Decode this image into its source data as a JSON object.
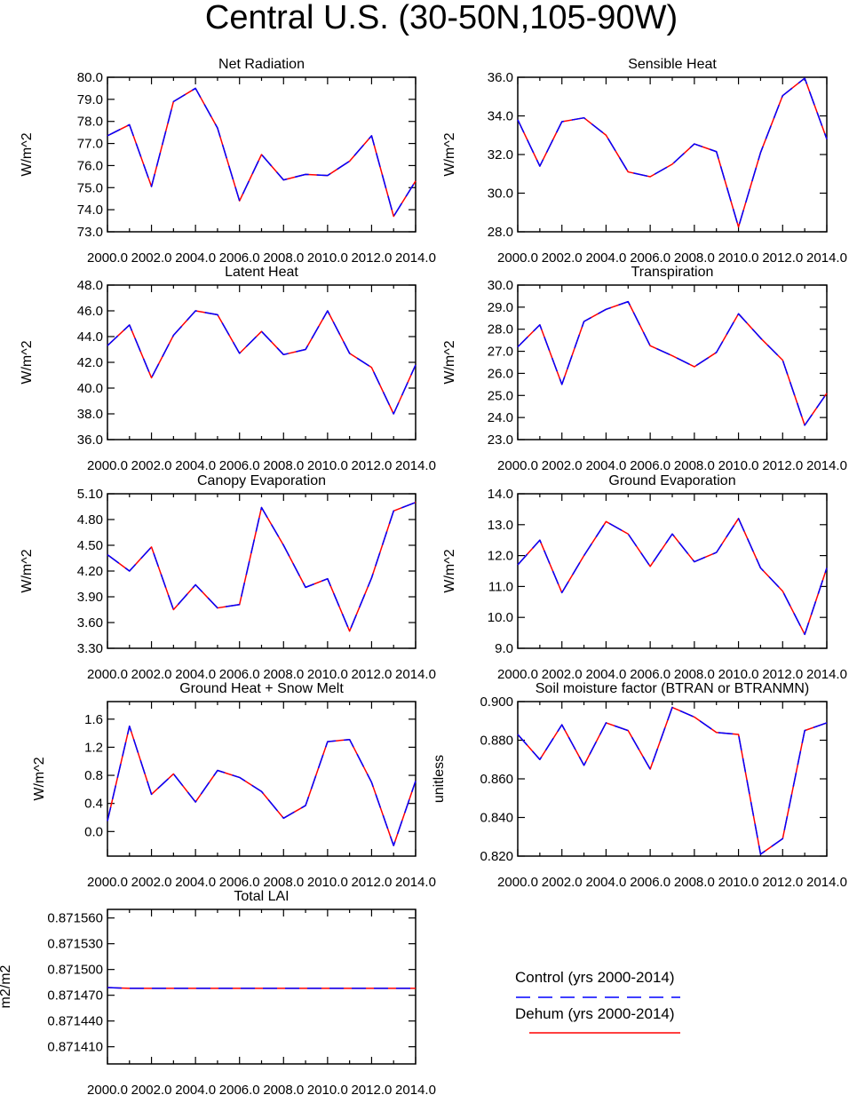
{
  "title": "Central U.S. (30-50N,105-90W)",
  "colors": {
    "control": "#0000ff",
    "dehum": "#ff0000",
    "axes": "#000000"
  },
  "legend": {
    "entries": [
      {
        "name": "Control (yrs 2000-2014)",
        "color": "#0000ff",
        "style": "dashed"
      },
      {
        "name": "Dehum (yrs 2000-2014)",
        "color": "#ff0000",
        "style": "solid"
      }
    ]
  },
  "chart_data": [
    {
      "type": "line",
      "title": "Net Radiation",
      "ylabel": "W/m^2",
      "x": [
        2000,
        2001,
        2002,
        2003,
        2004,
        2005,
        2006,
        2007,
        2008,
        2009,
        2010,
        2011,
        2012,
        2013,
        2014
      ],
      "xticks": [
        2000,
        2002,
        2004,
        2006,
        2008,
        2010,
        2012,
        2014
      ],
      "xtick_labels": [
        "2000.0",
        "2002.0",
        "2004.0",
        "2006.0",
        "2008.0",
        "2010.0",
        "2012.0",
        "2014.0"
      ],
      "xlim": [
        2000,
        2014
      ],
      "ylim": [
        73.0,
        80.0
      ],
      "yticks": [
        73.0,
        74.0,
        75.0,
        76.0,
        77.0,
        78.0,
        79.0,
        80.0
      ],
      "ytick_labels": [
        "73.0",
        "74.0",
        "75.0",
        "76.0",
        "77.0",
        "78.0",
        "79.0",
        "80.0"
      ],
      "series": [
        {
          "name": "Control (yrs 2000-2014)",
          "values": [
            77.35,
            77.85,
            75.05,
            78.9,
            79.5,
            77.7,
            74.4,
            76.5,
            75.35,
            75.6,
            75.55,
            76.2,
            77.35,
            73.7,
            75.3
          ]
        },
        {
          "name": "Dehum (yrs 2000-2014)",
          "values": [
            77.35,
            77.85,
            75.05,
            78.9,
            79.5,
            77.7,
            74.4,
            76.5,
            75.35,
            75.6,
            75.55,
            76.2,
            77.35,
            73.7,
            75.3
          ]
        }
      ]
    },
    {
      "type": "line",
      "title": "Sensible Heat",
      "ylabel": "W/m^2",
      "x": [
        2000,
        2001,
        2002,
        2003,
        2004,
        2005,
        2006,
        2007,
        2008,
        2009,
        2010,
        2011,
        2012,
        2013,
        2014
      ],
      "xticks": [
        2000,
        2002,
        2004,
        2006,
        2008,
        2010,
        2012,
        2014
      ],
      "xtick_labels": [
        "2000.0",
        "2002.0",
        "2004.0",
        "2006.0",
        "2008.0",
        "2010.0",
        "2012.0",
        "2014.0"
      ],
      "xlim": [
        2000,
        2014
      ],
      "ylim": [
        28.0,
        36.0
      ],
      "yticks": [
        28.0,
        30.0,
        32.0,
        34.0,
        36.0
      ],
      "ytick_labels": [
        "28.0",
        "30.0",
        "32.0",
        "34.0",
        "36.0"
      ],
      "series": [
        {
          "name": "Control (yrs 2000-2014)",
          "values": [
            33.8,
            31.4,
            33.7,
            33.9,
            33.0,
            31.1,
            30.85,
            31.5,
            32.55,
            32.15,
            28.25,
            32.1,
            35.05,
            35.95,
            32.8
          ]
        },
        {
          "name": "Dehum (yrs 2000-2014)",
          "values": [
            33.8,
            31.4,
            33.7,
            33.9,
            33.0,
            31.1,
            30.85,
            31.5,
            32.55,
            32.15,
            28.25,
            32.1,
            35.05,
            35.95,
            32.8
          ]
        }
      ]
    },
    {
      "type": "line",
      "title": "Latent Heat",
      "ylabel": "W/m^2",
      "x": [
        2000,
        2001,
        2002,
        2003,
        2004,
        2005,
        2006,
        2007,
        2008,
        2009,
        2010,
        2011,
        2012,
        2013,
        2014
      ],
      "xticks": [
        2000,
        2002,
        2004,
        2006,
        2008,
        2010,
        2012,
        2014
      ],
      "xtick_labels": [
        "2000.0",
        "2002.0",
        "2004.0",
        "2006.0",
        "2008.0",
        "2010.0",
        "2012.0",
        "2014.0"
      ],
      "xlim": [
        2000,
        2014
      ],
      "ylim": [
        36.0,
        48.0
      ],
      "yticks": [
        36.0,
        38.0,
        40.0,
        42.0,
        44.0,
        46.0,
        48.0
      ],
      "ytick_labels": [
        "36.0",
        "38.0",
        "40.0",
        "42.0",
        "44.0",
        "46.0",
        "48.0"
      ],
      "series": [
        {
          "name": "Control (yrs 2000-2014)",
          "values": [
            43.3,
            44.9,
            40.8,
            44.1,
            46.0,
            45.7,
            42.7,
            44.4,
            42.6,
            43.0,
            46.0,
            42.7,
            41.6,
            38.0,
            41.8
          ]
        },
        {
          "name": "Dehum (yrs 2000-2014)",
          "values": [
            43.3,
            44.9,
            40.8,
            44.1,
            46.0,
            45.7,
            42.7,
            44.4,
            42.6,
            43.0,
            46.0,
            42.7,
            41.6,
            38.0,
            41.8
          ]
        }
      ]
    },
    {
      "type": "line",
      "title": "Transpiration",
      "ylabel": "W/m^2",
      "x": [
        2000,
        2001,
        2002,
        2003,
        2004,
        2005,
        2006,
        2007,
        2008,
        2009,
        2010,
        2011,
        2012,
        2013,
        2014
      ],
      "xticks": [
        2000,
        2002,
        2004,
        2006,
        2008,
        2010,
        2012,
        2014
      ],
      "xtick_labels": [
        "2000.0",
        "2002.0",
        "2004.0",
        "2006.0",
        "2008.0",
        "2010.0",
        "2012.0",
        "2014.0"
      ],
      "xlim": [
        2000,
        2014
      ],
      "ylim": [
        23.0,
        30.0
      ],
      "yticks": [
        23.0,
        24.0,
        25.0,
        26.0,
        27.0,
        28.0,
        29.0,
        30.0
      ],
      "ytick_labels": [
        "23.0",
        "24.0",
        "25.0",
        "26.0",
        "27.0",
        "28.0",
        "29.0",
        "30.0"
      ],
      "series": [
        {
          "name": "Control (yrs 2000-2014)",
          "values": [
            27.2,
            28.2,
            25.5,
            28.35,
            28.9,
            29.25,
            27.25,
            26.8,
            26.3,
            26.95,
            28.7,
            27.6,
            26.6,
            23.65,
            25.1
          ]
        },
        {
          "name": "Dehum (yrs 2000-2014)",
          "values": [
            27.2,
            28.2,
            25.5,
            28.35,
            28.9,
            29.25,
            27.25,
            26.8,
            26.3,
            26.95,
            28.7,
            27.6,
            26.6,
            23.65,
            25.1
          ]
        }
      ]
    },
    {
      "type": "line",
      "title": "Canopy Evaporation",
      "ylabel": "W/m^2",
      "x": [
        2000,
        2001,
        2002,
        2003,
        2004,
        2005,
        2006,
        2007,
        2008,
        2009,
        2010,
        2011,
        2012,
        2013,
        2014
      ],
      "xticks": [
        2000,
        2002,
        2004,
        2006,
        2008,
        2010,
        2012,
        2014
      ],
      "xtick_labels": [
        "2000.0",
        "2002.0",
        "2004.0",
        "2006.0",
        "2008.0",
        "2010.0",
        "2012.0",
        "2014.0"
      ],
      "xlim": [
        2000,
        2014
      ],
      "ylim": [
        3.3,
        5.1
      ],
      "yticks": [
        3.3,
        3.6,
        3.9,
        4.2,
        4.5,
        4.8,
        5.1
      ],
      "ytick_labels": [
        "3.30",
        "3.60",
        "3.90",
        "4.20",
        "4.50",
        "4.80",
        "5.10"
      ],
      "series": [
        {
          "name": "Control (yrs 2000-2014)",
          "values": [
            4.39,
            4.2,
            4.48,
            3.75,
            4.04,
            3.77,
            3.81,
            4.94,
            4.5,
            4.01,
            4.11,
            3.5,
            4.12,
            4.9,
            5.0
          ]
        },
        {
          "name": "Dehum (yrs 2000-2014)",
          "values": [
            4.39,
            4.2,
            4.48,
            3.75,
            4.04,
            3.77,
            3.81,
            4.94,
            4.5,
            4.01,
            4.11,
            3.5,
            4.12,
            4.9,
            5.0
          ]
        }
      ]
    },
    {
      "type": "line",
      "title": "Ground Evaporation",
      "ylabel": "W/m^2",
      "x": [
        2000,
        2001,
        2002,
        2003,
        2004,
        2005,
        2006,
        2007,
        2008,
        2009,
        2010,
        2011,
        2012,
        2013,
        2014
      ],
      "xticks": [
        2000,
        2002,
        2004,
        2006,
        2008,
        2010,
        2012,
        2014
      ],
      "xtick_labels": [
        "2000.0",
        "2002.0",
        "2004.0",
        "2006.0",
        "2008.0",
        "2010.0",
        "2012.0",
        "2014.0"
      ],
      "xlim": [
        2000,
        2014
      ],
      "ylim": [
        9.0,
        14.0
      ],
      "yticks": [
        9.0,
        10.0,
        11.0,
        12.0,
        13.0,
        14.0
      ],
      "ytick_labels": [
        "9.0",
        "10.0",
        "11.0",
        "12.0",
        "13.0",
        "14.0"
      ],
      "series": [
        {
          "name": "Control (yrs 2000-2014)",
          "values": [
            11.7,
            12.5,
            10.8,
            12.0,
            13.1,
            12.7,
            11.65,
            12.7,
            11.8,
            12.1,
            13.2,
            11.6,
            10.85,
            9.45,
            11.6
          ]
        },
        {
          "name": "Dehum (yrs 2000-2014)",
          "values": [
            11.7,
            12.5,
            10.8,
            12.0,
            13.1,
            12.7,
            11.65,
            12.7,
            11.8,
            12.1,
            13.2,
            11.6,
            10.85,
            9.45,
            11.6
          ]
        }
      ]
    },
    {
      "type": "line",
      "title": "Ground Heat + Snow Melt",
      "ylabel": "W/m^2",
      "x": [
        2000,
        2001,
        2002,
        2003,
        2004,
        2005,
        2006,
        2007,
        2008,
        2009,
        2010,
        2011,
        2012,
        2013,
        2014
      ],
      "xticks": [
        2000,
        2002,
        2004,
        2006,
        2008,
        2010,
        2012,
        2014
      ],
      "xtick_labels": [
        "2000.0",
        "2002.0",
        "2004.0",
        "2006.0",
        "2008.0",
        "2010.0",
        "2012.0",
        "2014.0"
      ],
      "xlim": [
        2000,
        2014
      ],
      "ylim": [
        -0.35,
        1.85
      ],
      "yticks": [
        0.0,
        0.4,
        0.8,
        1.2,
        1.6
      ],
      "ytick_labels": [
        "0.0",
        "0.4",
        "0.8",
        "1.2",
        "1.6"
      ],
      "series": [
        {
          "name": "Control (yrs 2000-2014)",
          "values": [
            0.15,
            1.5,
            0.53,
            0.82,
            0.42,
            0.87,
            0.77,
            0.57,
            0.19,
            0.37,
            1.28,
            1.31,
            0.7,
            -0.2,
            0.72
          ]
        },
        {
          "name": "Dehum (yrs 2000-2014)",
          "values": [
            0.15,
            1.5,
            0.53,
            0.82,
            0.42,
            0.87,
            0.77,
            0.57,
            0.19,
            0.37,
            1.28,
            1.31,
            0.7,
            -0.2,
            0.72
          ]
        }
      ]
    },
    {
      "type": "line",
      "title": "Soil moisture factor (BTRAN or BTRANMN)",
      "ylabel": "unitless",
      "x": [
        2000,
        2001,
        2002,
        2003,
        2004,
        2005,
        2006,
        2007,
        2008,
        2009,
        2010,
        2011,
        2012,
        2013,
        2014
      ],
      "xticks": [
        2000,
        2002,
        2004,
        2006,
        2008,
        2010,
        2012,
        2014
      ],
      "xtick_labels": [
        "2000.0",
        "2002.0",
        "2004.0",
        "2006.0",
        "2008.0",
        "2010.0",
        "2012.0",
        "2014.0"
      ],
      "xlim": [
        2000,
        2014
      ],
      "ylim": [
        0.82,
        0.9
      ],
      "yticks": [
        0.82,
        0.84,
        0.86,
        0.88,
        0.9
      ],
      "ytick_labels": [
        "0.820",
        "0.840",
        "0.860",
        "0.880",
        "0.900"
      ],
      "series": [
        {
          "name": "Control (yrs 2000-2014)",
          "values": [
            0.883,
            0.87,
            0.888,
            0.867,
            0.889,
            0.885,
            0.865,
            0.897,
            0.892,
            0.884,
            0.883,
            0.821,
            0.829,
            0.885,
            0.889
          ]
        },
        {
          "name": "Dehum (yrs 2000-2014)",
          "values": [
            0.883,
            0.87,
            0.888,
            0.867,
            0.889,
            0.885,
            0.865,
            0.897,
            0.892,
            0.884,
            0.883,
            0.821,
            0.829,
            0.885,
            0.889
          ]
        }
      ]
    },
    {
      "type": "line",
      "title": "Total LAI",
      "ylabel": "m2/m2",
      "x": [
        2000,
        2001,
        2002,
        2003,
        2004,
        2005,
        2006,
        2007,
        2008,
        2009,
        2010,
        2011,
        2012,
        2013,
        2014
      ],
      "xticks": [
        2000,
        2002,
        2004,
        2006,
        2008,
        2010,
        2012,
        2014
      ],
      "xtick_labels": [
        "2000.0",
        "2002.0",
        "2004.0",
        "2006.0",
        "2008.0",
        "2010.0",
        "2012.0",
        "2014.0"
      ],
      "xlim": [
        2000,
        2014
      ],
      "ylim": [
        0.87139,
        0.87157
      ],
      "yticks": [
        0.87141,
        0.87144,
        0.87147,
        0.8715,
        0.87153,
        0.87156
      ],
      "ytick_labels": [
        "0.871410",
        "0.871440",
        "0.871470",
        "0.871500",
        "0.871530",
        "0.871560"
      ],
      "series": [
        {
          "name": "Control (yrs 2000-2014)",
          "values": [
            0.871479,
            0.871478,
            0.871478,
            0.871478,
            0.871478,
            0.871478,
            0.871478,
            0.871478,
            0.871478,
            0.871478,
            0.871478,
            0.871478,
            0.871478,
            0.871478,
            0.871478
          ]
        },
        {
          "name": "Dehum (yrs 2000-2014)",
          "values": [
            0.871479,
            0.871478,
            0.871478,
            0.871478,
            0.871478,
            0.871478,
            0.871478,
            0.871478,
            0.871478,
            0.871478,
            0.871478,
            0.871478,
            0.871478,
            0.871478,
            0.871478
          ]
        }
      ]
    }
  ]
}
